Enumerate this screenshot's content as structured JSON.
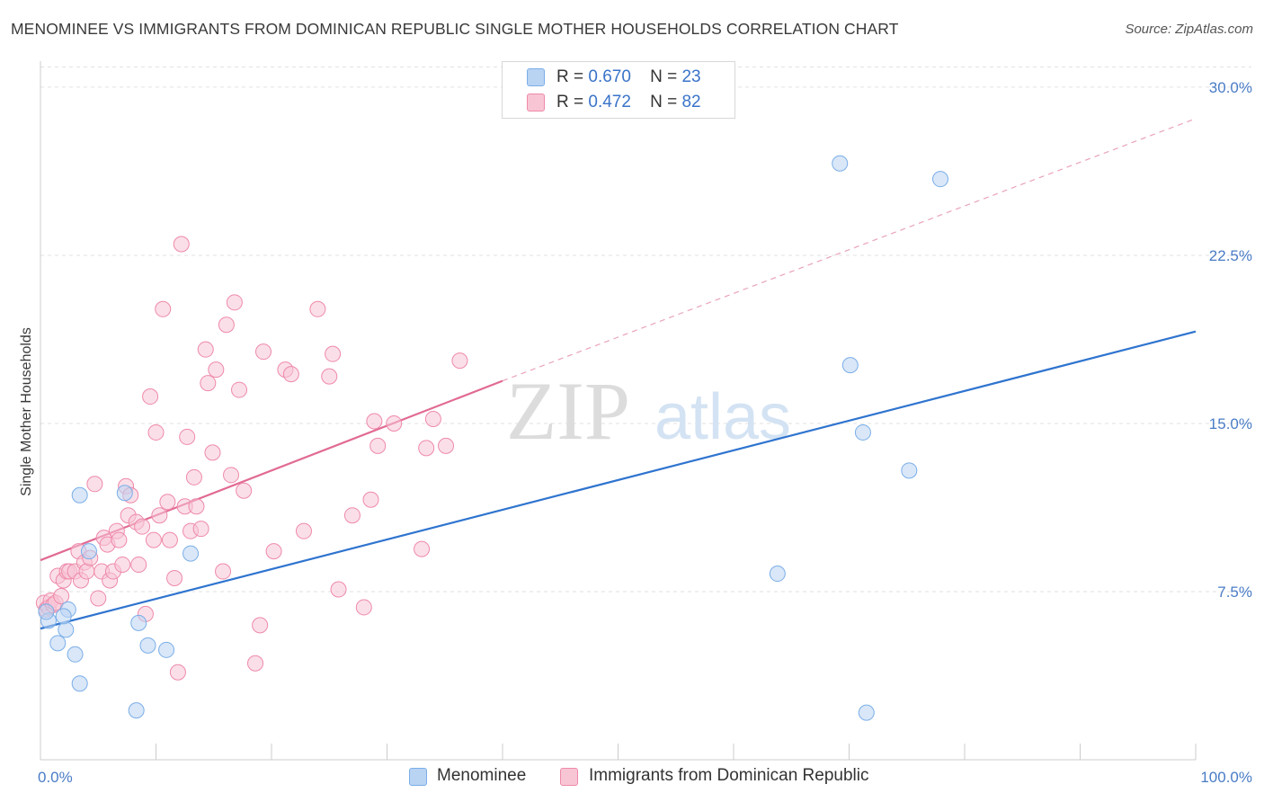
{
  "title": "MENOMINEE VS IMMIGRANTS FROM DOMINICAN REPUBLIC SINGLE MOTHER HOUSEHOLDS CORRELATION CHART",
  "source": "Source: ZipAtlas.com",
  "watermark": {
    "zip": "ZIP",
    "atlas": "atlas"
  },
  "legend": {
    "r_label": "R =",
    "n_label": "N =",
    "series": [
      {
        "r": "0.670",
        "n": "23"
      },
      {
        "r": "0.472",
        "n": "82"
      }
    ]
  },
  "chart_data": {
    "type": "scatter",
    "title": "MENOMINEE VS IMMIGRANTS FROM DOMINICAN REPUBLIC SINGLE MOTHER HOUSEHOLDS CORRELATION CHART",
    "xlabel": "",
    "ylabel": "Single Mother Households",
    "xlim": [
      0,
      100
    ],
    "ylim": [
      0,
      31
    ],
    "x_tick_labels": [
      "0.0%",
      "100.0%"
    ],
    "y_ticks": [
      7.5,
      15.0,
      22.5,
      30.0
    ],
    "y_tick_labels": [
      "7.5%",
      "15.0%",
      "22.5%",
      "30.0%"
    ],
    "grid": true,
    "legend_position": "top-center",
    "series": [
      {
        "name": "Menominee",
        "color": "#7aaee8",
        "fill": "#b9d3f3",
        "points": [
          [
            0.7,
            6.2
          ],
          [
            1.5,
            5.2
          ],
          [
            2.2,
            5.8
          ],
          [
            2.4,
            6.7
          ],
          [
            3.0,
            4.7
          ],
          [
            3.4,
            11.8
          ],
          [
            3.4,
            3.4
          ],
          [
            4.2,
            9.3
          ],
          [
            7.3,
            11.9
          ],
          [
            8.3,
            2.2
          ],
          [
            8.5,
            6.1
          ],
          [
            9.3,
            5.1
          ],
          [
            10.9,
            4.9
          ],
          [
            13.0,
            9.2
          ],
          [
            63.8,
            8.3
          ],
          [
            69.2,
            26.6
          ],
          [
            70.1,
            17.6
          ],
          [
            71.2,
            14.6
          ],
          [
            75.2,
            12.9
          ],
          [
            77.9,
            25.9
          ],
          [
            71.5,
            2.1
          ],
          [
            0.5,
            6.6
          ],
          [
            2.0,
            6.4
          ]
        ],
        "trend": {
          "x": [
            0,
            100
          ],
          "y": [
            5.85,
            19.1
          ],
          "style": "solid"
        }
      },
      {
        "name": "Immigrants from Dominican Republic",
        "color": "#ee8aa9",
        "fill": "#f8c5d5",
        "points": [
          [
            0.3,
            7.0
          ],
          [
            0.5,
            6.7
          ],
          [
            0.7,
            6.8
          ],
          [
            0.9,
            7.1
          ],
          [
            1.1,
            6.9
          ],
          [
            1.3,
            7.0
          ],
          [
            1.5,
            8.2
          ],
          [
            1.8,
            7.3
          ],
          [
            2.0,
            8.0
          ],
          [
            2.3,
            8.4
          ],
          [
            2.5,
            8.4
          ],
          [
            3.0,
            8.4
          ],
          [
            3.3,
            9.3
          ],
          [
            3.5,
            8.0
          ],
          [
            3.8,
            8.8
          ],
          [
            4.0,
            8.4
          ],
          [
            4.3,
            9.0
          ],
          [
            4.7,
            12.3
          ],
          [
            5.0,
            7.2
          ],
          [
            5.3,
            8.4
          ],
          [
            5.5,
            9.9
          ],
          [
            5.8,
            9.6
          ],
          [
            6.0,
            8.0
          ],
          [
            6.3,
            8.4
          ],
          [
            6.6,
            10.2
          ],
          [
            6.8,
            9.8
          ],
          [
            7.1,
            8.7
          ],
          [
            7.4,
            12.2
          ],
          [
            7.6,
            10.9
          ],
          [
            7.8,
            11.8
          ],
          [
            8.3,
            10.6
          ],
          [
            8.5,
            8.7
          ],
          [
            8.8,
            10.4
          ],
          [
            9.1,
            6.5
          ],
          [
            9.5,
            16.2
          ],
          [
            9.8,
            9.8
          ],
          [
            10.0,
            14.6
          ],
          [
            10.3,
            10.9
          ],
          [
            10.6,
            20.1
          ],
          [
            11.0,
            11.5
          ],
          [
            11.2,
            9.8
          ],
          [
            11.6,
            8.1
          ],
          [
            11.9,
            3.9
          ],
          [
            12.2,
            23.0
          ],
          [
            12.5,
            11.3
          ],
          [
            12.7,
            14.4
          ],
          [
            13.0,
            10.2
          ],
          [
            13.3,
            12.6
          ],
          [
            13.5,
            11.3
          ],
          [
            13.9,
            10.3
          ],
          [
            14.3,
            18.3
          ],
          [
            14.5,
            16.8
          ],
          [
            14.9,
            13.7
          ],
          [
            15.2,
            17.4
          ],
          [
            15.8,
            8.4
          ],
          [
            16.1,
            19.4
          ],
          [
            16.5,
            12.7
          ],
          [
            16.8,
            20.4
          ],
          [
            17.2,
            16.5
          ],
          [
            17.6,
            12.0
          ],
          [
            18.6,
            4.3
          ],
          [
            19.0,
            6.0
          ],
          [
            19.3,
            18.2
          ],
          [
            20.2,
            9.3
          ],
          [
            21.2,
            17.4
          ],
          [
            21.7,
            17.2
          ],
          [
            22.8,
            10.2
          ],
          [
            24.0,
            20.1
          ],
          [
            25.0,
            17.1
          ],
          [
            25.3,
            18.1
          ],
          [
            25.8,
            7.6
          ],
          [
            27.0,
            10.9
          ],
          [
            28.0,
            6.8
          ],
          [
            28.6,
            11.6
          ],
          [
            28.9,
            15.1
          ],
          [
            29.2,
            14.0
          ],
          [
            30.6,
            15.0
          ],
          [
            33.0,
            9.4
          ],
          [
            33.4,
            13.9
          ],
          [
            34.0,
            15.2
          ],
          [
            35.1,
            14.0
          ],
          [
            36.3,
            17.8
          ]
        ],
        "trend": {
          "x": [
            0,
            40
          ],
          "y": [
            8.9,
            16.9
          ],
          "style": "solid",
          "extension": {
            "x": [
              40,
              100
            ],
            "y": [
              16.9,
              28.6
            ],
            "style": "dashed"
          }
        }
      }
    ]
  }
}
